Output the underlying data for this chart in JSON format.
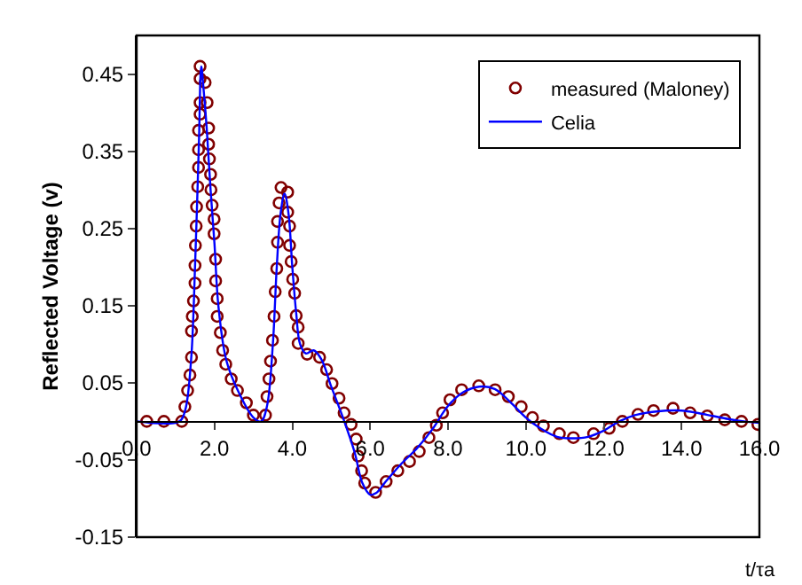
{
  "chart_data": {
    "type": "line",
    "xlabel": "t/τa",
    "ylabel": "Reflected Voltage (v)",
    "xlim": [
      0,
      16
    ],
    "ylim": [
      -0.15,
      0.5
    ],
    "xticks": [
      {
        "value": 0,
        "label": "0.0"
      },
      {
        "value": 2,
        "label": "2.0"
      },
      {
        "value": 4,
        "label": "4.0"
      },
      {
        "value": 6,
        "label": "6.0"
      },
      {
        "value": 8,
        "label": "8.0"
      },
      {
        "value": 10,
        "label": "10.0"
      },
      {
        "value": 12,
        "label": "12.0"
      },
      {
        "value": 14,
        "label": "14.0"
      },
      {
        "value": 16,
        "label": "16.0"
      }
    ],
    "yticks": [
      -0.15,
      -0.05,
      0.05,
      0.15,
      0.25,
      0.35,
      0.45
    ],
    "legend": "top right",
    "series": [
      {
        "name": "measured (Maloney)",
        "type": "scatter",
        "marker": "circle",
        "color": "#800000",
        "x": [
          0.26,
          0.7,
          1.16,
          1.24,
          1.31,
          1.37,
          1.41,
          1.41,
          1.43,
          1.46,
          1.5,
          1.5,
          1.51,
          1.53,
          1.54,
          1.57,
          1.59,
          1.59,
          1.59,
          1.63,
          1.63,
          1.63,
          1.63,
          1.76,
          1.81,
          1.85,
          1.85,
          1.87,
          1.9,
          1.91,
          1.94,
          1.99,
          1.99,
          2.03,
          2.03,
          2.07,
          2.07,
          2.15,
          2.21,
          2.29,
          2.43,
          2.59,
          2.82,
          3.0,
          3.31,
          3.35,
          3.4,
          3.44,
          3.49,
          3.53,
          3.56,
          3.6,
          3.62,
          3.62,
          3.66,
          3.71,
          3.88,
          3.88,
          3.93,
          3.93,
          3.97,
          4.01,
          4.06,
          4.1,
          4.15,
          4.15,
          4.38,
          4.7,
          4.88,
          5.02,
          5.2,
          5.33,
          5.51,
          5.64,
          5.69,
          5.78,
          5.86,
          6.14,
          6.41,
          6.71,
          7.01,
          7.26,
          7.51,
          7.7,
          7.86,
          8.05,
          8.35,
          8.79,
          9.21,
          9.55,
          9.88,
          10.17,
          10.45,
          10.86,
          11.22,
          11.74,
          12.14,
          12.48,
          12.88,
          13.28,
          13.78,
          14.22,
          14.66,
          15.11,
          15.54,
          15.96
        ],
        "values": [
          0,
          0,
          0,
          0.019,
          0.04,
          0.06,
          0.083,
          0.117,
          0.136,
          0.156,
          0.179,
          0.202,
          0.228,
          0.253,
          0.278,
          0.304,
          0.329,
          0.352,
          0.377,
          0.398,
          0.413,
          0.444,
          0.46,
          0.439,
          0.413,
          0.38,
          0.359,
          0.34,
          0.32,
          0.3,
          0.28,
          0.262,
          0.243,
          0.21,
          0.182,
          0.159,
          0.136,
          0.115,
          0.092,
          0.074,
          0.055,
          0.04,
          0.024,
          0.008,
          0.008,
          0.032,
          0.055,
          0.078,
          0.105,
          0.136,
          0.168,
          0.198,
          0.232,
          0.259,
          0.283,
          0.303,
          0.297,
          0.271,
          0.253,
          0.228,
          0.207,
          0.184,
          0.166,
          0.137,
          0.122,
          0.101,
          0.087,
          0.083,
          0.067,
          0.049,
          0.03,
          0.011,
          -0.004,
          -0.023,
          -0.045,
          -0.064,
          -0.08,
          -0.092,
          -0.078,
          -0.064,
          -0.052,
          -0.039,
          -0.021,
          -0.005,
          0.011,
          0.028,
          0.041,
          0.046,
          0.041,
          0.032,
          0.019,
          0.005,
          -0.006,
          -0.016,
          -0.021,
          -0.016,
          -0.009,
          0,
          0.009,
          0.014,
          0.017,
          0.011,
          0.007,
          0.002,
          0,
          -0.004
        ]
      },
      {
        "name": "Celia",
        "marker": "none",
        "line_style": "solid",
        "color": "#0000ff",
        "x": [
          0,
          1.1,
          1.25,
          1.4,
          1.5,
          1.6,
          1.66,
          1.72,
          1.8,
          1.9,
          2.0,
          2.1,
          2.3,
          2.6,
          3.0,
          3.2,
          3.35,
          3.5,
          3.6,
          3.7,
          3.8,
          3.9,
          4.0,
          4.1,
          4.2,
          4.35,
          4.55,
          4.75,
          5.0,
          5.3,
          5.6,
          5.8,
          6.0,
          6.15,
          6.4,
          6.8,
          7.2,
          7.6,
          8.0,
          8.4,
          8.8,
          9.2,
          9.6,
          10.0,
          10.4,
          10.8,
          11.2,
          11.6,
          12.0,
          12.4,
          12.8,
          13.2,
          13.6,
          14.0,
          14.4,
          14.8,
          15.2,
          15.6,
          16.0
        ],
        "values": [
          0,
          0,
          0.015,
          0.08,
          0.2,
          0.36,
          0.46,
          0.43,
          0.38,
          0.3,
          0.23,
          0.15,
          0.08,
          0.04,
          0.005,
          0.0,
          0.02,
          0.1,
          0.2,
          0.27,
          0.295,
          0.27,
          0.2,
          0.14,
          0.1,
          0.088,
          0.092,
          0.08,
          0.045,
          0.005,
          -0.04,
          -0.08,
          -0.095,
          -0.093,
          -0.078,
          -0.055,
          -0.035,
          -0.01,
          0.02,
          0.038,
          0.045,
          0.042,
          0.025,
          0.005,
          -0.01,
          -0.02,
          -0.022,
          -0.02,
          -0.012,
          0,
          0.008,
          0.012,
          0.014,
          0.014,
          0.011,
          0.007,
          0.003,
          0,
          -0.002
        ]
      }
    ]
  }
}
